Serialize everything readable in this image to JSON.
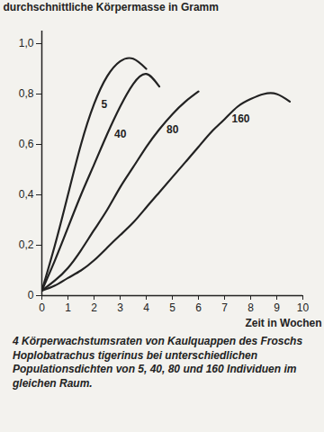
{
  "chart_data": {
    "type": "line",
    "y_label": "durchschnittliche Körpermasse in Gramm",
    "x_label": "Zeit in Wochen",
    "caption": "4 Körperwachstumsraten von Kaulquappen des Froschs Hoplobatrachus tigerinus bei unterschiedlichen Populationsdichten von 5, 40, 80 und 160 Individuen im gleichen Raum.",
    "x": [
      0,
      0.5,
      1,
      1.5,
      2,
      2.5,
      3,
      3.5,
      4,
      4.5,
      5,
      5.5,
      6,
      6.5,
      7,
      7.5,
      8,
      8.5,
      9,
      9.5,
      10
    ],
    "series": [
      {
        "name": "5",
        "color": "#222222",
        "values": [
          0.02,
          0.2,
          0.4,
          0.6,
          0.76,
          0.87,
          0.93,
          0.94,
          0.9,
          null,
          null,
          null,
          null,
          null,
          null,
          null,
          null,
          null,
          null,
          null,
          null
        ]
      },
      {
        "name": "40",
        "color": "#222222",
        "values": [
          0.02,
          0.14,
          0.27,
          0.4,
          0.52,
          0.64,
          0.75,
          0.84,
          0.88,
          0.83,
          null,
          null,
          null,
          null,
          null,
          null,
          null,
          null,
          null,
          null,
          null
        ]
      },
      {
        "name": "80",
        "color": "#222222",
        "values": [
          0.02,
          0.06,
          0.11,
          0.18,
          0.26,
          0.34,
          0.43,
          0.51,
          0.59,
          0.66,
          0.72,
          0.77,
          0.81,
          null,
          null,
          null,
          null,
          null,
          null,
          null,
          null
        ]
      },
      {
        "name": "160",
        "color": "#222222",
        "values": [
          0.02,
          0.04,
          0.07,
          0.1,
          0.14,
          0.19,
          0.24,
          0.29,
          0.35,
          0.41,
          0.47,
          0.53,
          0.59,
          0.65,
          0.7,
          0.75,
          0.78,
          0.8,
          0.8,
          0.77,
          null
        ]
      }
    ],
    "xlim": [
      0,
      10
    ],
    "xticks": [
      0,
      1,
      2,
      3,
      4,
      5,
      6,
      7,
      8,
      9,
      10
    ],
    "ylim": [
      0,
      1.05
    ],
    "yticks": [
      0,
      {
        "value": 0.2,
        "label": "0,2"
      },
      {
        "value": 0.4,
        "label": "0,4"
      },
      {
        "value": 0.6,
        "label": "0,6"
      },
      {
        "value": 0.8,
        "label": "0,8"
      },
      {
        "value": 1,
        "label": "1,0"
      }
    ],
    "grid": false
  }
}
